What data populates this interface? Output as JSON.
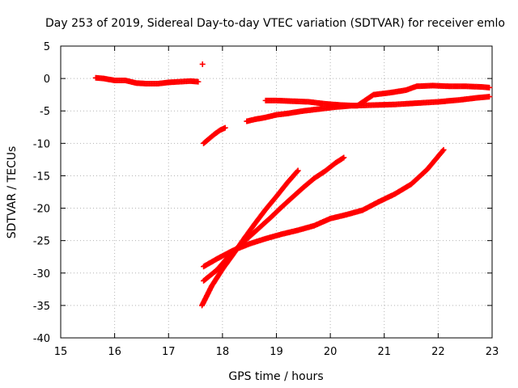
{
  "chart_data": {
    "type": "scatter",
    "title": "Day 253 of 2019, Sidereal Day-to-day VTEC variation (SDTVAR) for receiver emlo",
    "xlabel": "GPS time / hours",
    "ylabel": "SDTVAR / TECUs",
    "xlim": [
      15,
      23
    ],
    "ylim": [
      -40,
      5
    ],
    "xticks": [
      "15",
      "16",
      "17",
      "18",
      "19",
      "20",
      "21",
      "22",
      "23"
    ],
    "yticks": [
      "5",
      "0",
      "-5",
      "-10",
      "-15",
      "-20",
      "-25",
      "-30",
      "-35",
      "-40"
    ],
    "grid": true,
    "marker": "plus",
    "color": "#ff0000",
    "series": [
      {
        "points": [
          [
            15.65,
            0.1
          ],
          [
            15.8,
            0.0
          ],
          [
            16.0,
            -0.3
          ],
          [
            16.2,
            -0.3
          ],
          [
            16.4,
            -0.7
          ],
          [
            16.6,
            -0.8
          ],
          [
            16.8,
            -0.8
          ],
          [
            17.0,
            -0.6
          ],
          [
            17.2,
            -0.5
          ],
          [
            17.4,
            -0.4
          ],
          [
            17.55,
            -0.5
          ]
        ]
      },
      {
        "points": [
          [
            17.63,
            2.2
          ]
        ]
      },
      {
        "points": [
          [
            17.65,
            -10.0
          ],
          [
            17.75,
            -9.3
          ],
          [
            17.85,
            -8.6
          ],
          [
            17.95,
            -8.0
          ],
          [
            18.05,
            -7.6
          ]
        ]
      },
      {
        "points": [
          [
            18.45,
            -6.6
          ],
          [
            18.6,
            -6.3
          ],
          [
            18.8,
            -6.0
          ],
          [
            19.0,
            -5.6
          ],
          [
            19.2,
            -5.4
          ],
          [
            19.5,
            -5.0
          ],
          [
            19.8,
            -4.7
          ],
          [
            20.1,
            -4.4
          ],
          [
            20.4,
            -4.2
          ],
          [
            20.8,
            -4.1
          ],
          [
            21.2,
            -4.0
          ],
          [
            21.6,
            -3.8
          ],
          [
            22.0,
            -3.6
          ],
          [
            22.4,
            -3.3
          ],
          [
            22.7,
            -3.0
          ],
          [
            22.95,
            -2.8
          ]
        ]
      },
      {
        "points": [
          [
            18.8,
            -3.4
          ],
          [
            19.0,
            -3.4
          ],
          [
            19.3,
            -3.5
          ],
          [
            19.6,
            -3.6
          ],
          [
            19.9,
            -3.9
          ],
          [
            20.2,
            -4.1
          ],
          [
            20.5,
            -4.2
          ],
          [
            20.8,
            -2.5
          ],
          [
            21.1,
            -2.2
          ],
          [
            21.4,
            -1.8
          ],
          [
            21.6,
            -1.2
          ],
          [
            21.9,
            -1.1
          ],
          [
            22.2,
            -1.2
          ],
          [
            22.5,
            -1.2
          ],
          [
            22.8,
            -1.3
          ],
          [
            22.95,
            -1.4
          ]
        ]
      },
      {
        "points": [
          [
            17.65,
            -29.0
          ],
          [
            17.9,
            -27.8
          ],
          [
            18.2,
            -26.5
          ],
          [
            18.5,
            -25.5
          ],
          [
            18.8,
            -24.7
          ],
          [
            19.1,
            -24.0
          ],
          [
            19.4,
            -23.4
          ],
          [
            19.7,
            -22.7
          ],
          [
            20.0,
            -21.6
          ],
          [
            20.3,
            -21.0
          ],
          [
            20.6,
            -20.3
          ],
          [
            20.9,
            -19.0
          ],
          [
            21.2,
            -17.8
          ],
          [
            21.5,
            -16.3
          ],
          [
            21.8,
            -14.0
          ],
          [
            22.1,
            -11.0
          ]
        ]
      },
      {
        "points": [
          [
            17.65,
            -31.2
          ],
          [
            17.9,
            -29.5
          ],
          [
            18.1,
            -27.6
          ],
          [
            18.3,
            -25.9
          ],
          [
            18.5,
            -24.4
          ],
          [
            18.7,
            -22.9
          ],
          [
            18.9,
            -21.4
          ],
          [
            19.1,
            -19.8
          ],
          [
            19.3,
            -18.3
          ],
          [
            19.5,
            -16.8
          ],
          [
            19.7,
            -15.4
          ],
          [
            19.9,
            -14.3
          ],
          [
            20.1,
            -13.0
          ],
          [
            20.25,
            -12.2
          ]
        ]
      },
      {
        "points": [
          [
            17.62,
            -35.0
          ],
          [
            17.8,
            -32.0
          ],
          [
            18.0,
            -29.4
          ],
          [
            18.2,
            -27.1
          ],
          [
            18.4,
            -24.7
          ],
          [
            18.6,
            -22.4
          ],
          [
            18.8,
            -20.2
          ],
          [
            19.0,
            -18.2
          ],
          [
            19.2,
            -16.1
          ],
          [
            19.4,
            -14.2
          ]
        ]
      }
    ]
  }
}
